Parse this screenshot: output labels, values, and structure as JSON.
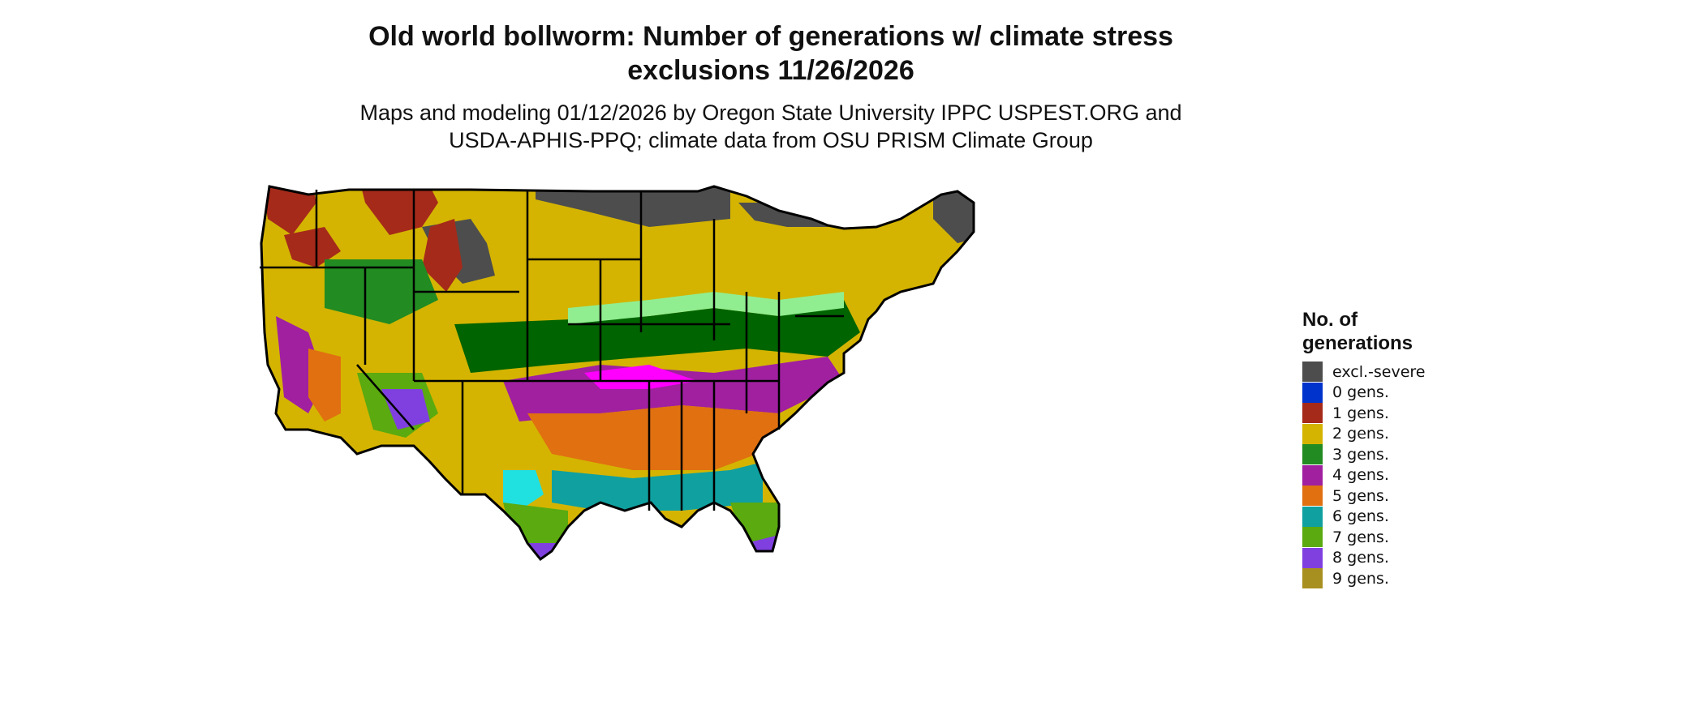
{
  "title_line1": "Old world bollworm: Number of generations w/ climate stress",
  "title_line2": "exclusions 11/26/2026",
  "subtitle_line1": "Maps and modeling 01/12/2026 by Oregon State University IPPC USPEST.ORG and",
  "subtitle_line2": "USDA-APHIS-PPQ; climate data from OSU PRISM Climate Group",
  "legend": {
    "title_line1": "No. of",
    "title_line2": "generations",
    "items": [
      {
        "label": "excl.-severe",
        "color": "#4d4d4d"
      },
      {
        "label": "0 gens.",
        "color": "#0033cc"
      },
      {
        "label": "1 gens.",
        "color": "#a52a1a"
      },
      {
        "label": "2 gens.",
        "color": "#d4b400"
      },
      {
        "label": "3 gens.",
        "color": "#228b22"
      },
      {
        "label": "4 gens.",
        "color": "#a020a0"
      },
      {
        "label": "5 gens.",
        "color": "#e07010"
      },
      {
        "label": "6 gens.",
        "color": "#10a0a0"
      },
      {
        "label": "7 gens.",
        "color": "#5aaa10"
      },
      {
        "label": "8 gens.",
        "color": "#8040e0"
      },
      {
        "label": "9 gens.",
        "color": "#a89020"
      }
    ]
  },
  "map_colors": {
    "light_green": "#90ee90",
    "dark_green": "#006400",
    "magenta": "#ff00ff",
    "cyan": "#20e0e0",
    "border": "#000000"
  }
}
